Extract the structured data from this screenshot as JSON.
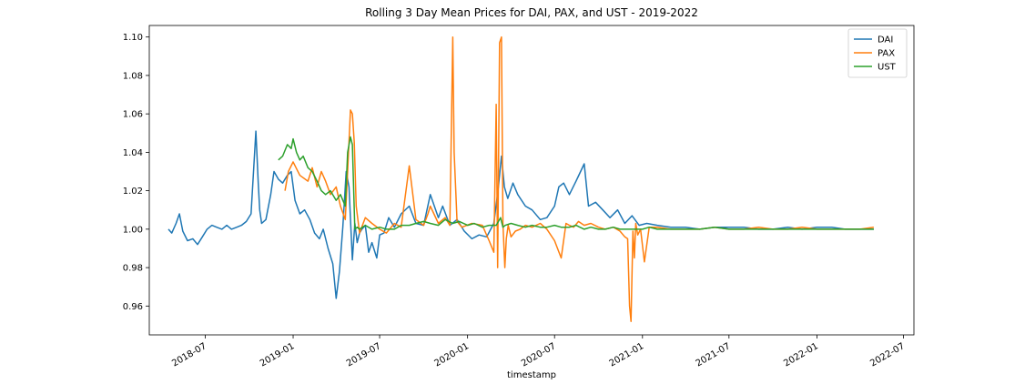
{
  "chart_data": {
    "type": "line",
    "title": "Rolling 3 Day Mean Prices for DAI, PAX, and UST - 2019-2022",
    "xlabel": "timestamp",
    "ylabel": "",
    "xlim": [
      "2018-03-06",
      "2022-07-23"
    ],
    "ylim": [
      0.945,
      1.106
    ],
    "grid": false,
    "legend_position": "top-right",
    "x_ticks": [
      "2018-07",
      "2019-01",
      "2019-07",
      "2020-01",
      "2020-07",
      "2021-01",
      "2021-07",
      "2022-01",
      "2022-07"
    ],
    "y_ticks": [
      "0.96",
      "0.98",
      "1.00",
      "1.02",
      "1.04",
      "1.06",
      "1.08",
      "1.10"
    ],
    "series": [
      {
        "name": "DAI",
        "color": "#1f77b4",
        "x": [
          "2018-04-15",
          "2018-04-22",
          "2018-05-01",
          "2018-05-08",
          "2018-05-15",
          "2018-05-25",
          "2018-06-05",
          "2018-06-15",
          "2018-06-25",
          "2018-07-05",
          "2018-07-15",
          "2018-07-25",
          "2018-08-05",
          "2018-08-15",
          "2018-08-25",
          "2018-09-05",
          "2018-09-15",
          "2018-09-25",
          "2018-10-05",
          "2018-10-15",
          "2018-10-20",
          "2018-10-23",
          "2018-10-27",
          "2018-11-05",
          "2018-11-15",
          "2018-11-22",
          "2018-12-01",
          "2018-12-10",
          "2018-12-20",
          "2018-12-28",
          "2019-01-05",
          "2019-01-15",
          "2019-01-25",
          "2019-02-05",
          "2019-02-15",
          "2019-02-25",
          "2019-03-05",
          "2019-03-15",
          "2019-03-25",
          "2019-04-01",
          "2019-04-08",
          "2019-04-15",
          "2019-04-22",
          "2019-04-28",
          "2019-05-05",
          "2019-05-10",
          "2019-05-15",
          "2019-05-20",
          "2019-05-25",
          "2019-06-01",
          "2019-06-08",
          "2019-06-15",
          "2019-06-25",
          "2019-07-01",
          "2019-07-10",
          "2019-07-20",
          "2019-08-01",
          "2019-08-15",
          "2019-09-01",
          "2019-09-15",
          "2019-10-01",
          "2019-10-15",
          "2019-11-01",
          "2019-11-10",
          "2019-11-25",
          "2019-12-10",
          "2019-12-25",
          "2020-01-10",
          "2020-01-25",
          "2020-02-10",
          "2020-02-25",
          "2020-03-05",
          "2020-03-12",
          "2020-03-18",
          "2020-03-25",
          "2020-04-05",
          "2020-04-15",
          "2020-05-01",
          "2020-05-15",
          "2020-06-01",
          "2020-06-15",
          "2020-07-01",
          "2020-07-10",
          "2020-07-20",
          "2020-08-01",
          "2020-08-15",
          "2020-09-01",
          "2020-09-10",
          "2020-09-25",
          "2020-10-10",
          "2020-10-25",
          "2020-11-10",
          "2020-11-25",
          "2020-12-10",
          "2020-12-25",
          "2021-01-10",
          "2021-02-01",
          "2021-03-01",
          "2021-04-01",
          "2021-05-01",
          "2021-06-01",
          "2021-07-01",
          "2021-08-01",
          "2021-09-01",
          "2021-10-01",
          "2021-11-01",
          "2021-12-01",
          "2022-01-01",
          "2022-02-01",
          "2022-03-01",
          "2022-04-01",
          "2022-04-30"
        ],
        "values": [
          1.0,
          0.998,
          1.003,
          1.008,
          0.999,
          0.994,
          0.995,
          0.992,
          0.996,
          1.0,
          1.002,
          1.001,
          1.0,
          1.002,
          1.0,
          1.001,
          1.002,
          1.004,
          1.008,
          1.051,
          1.024,
          1.01,
          1.003,
          1.005,
          1.018,
          1.03,
          1.026,
          1.024,
          1.028,
          1.03,
          1.015,
          1.008,
          1.01,
          1.005,
          0.998,
          0.995,
          1.0,
          0.99,
          0.982,
          0.964,
          0.978,
          1.001,
          1.03,
          1.022,
          0.984,
          1.003,
          0.993,
          0.998,
          1.0,
          1.002,
          0.988,
          0.993,
          0.985,
          0.997,
          0.998,
          1.006,
          1.001,
          1.008,
          1.012,
          1.003,
          1.002,
          1.018,
          1.006,
          1.012,
          1.002,
          1.005,
          0.999,
          0.995,
          0.997,
          0.996,
          1.003,
          1.021,
          1.038,
          1.022,
          1.016,
          1.024,
          1.018,
          1.012,
          1.01,
          1.005,
          1.006,
          1.012,
          1.022,
          1.024,
          1.018,
          1.025,
          1.034,
          1.012,
          1.014,
          1.01,
          1.006,
          1.01,
          1.003,
          1.007,
          1.002,
          1.003,
          1.002,
          1.001,
          1.001,
          1.0,
          1.001,
          1.001,
          1.001,
          1.0,
          1.0,
          1.001,
          1.0,
          1.001,
          1.001,
          1.0,
          1.0,
          1.0
        ]
      },
      {
        "name": "PAX",
        "color": "#ff7f0e",
        "x": [
          "2018-12-15",
          "2018-12-22",
          "2019-01-01",
          "2019-01-15",
          "2019-02-01",
          "2019-02-10",
          "2019-02-20",
          "2019-03-01",
          "2019-03-10",
          "2019-03-20",
          "2019-04-01",
          "2019-04-10",
          "2019-04-20",
          "2019-04-25",
          "2019-05-01",
          "2019-05-05",
          "2019-05-09",
          "2019-05-13",
          "2019-05-20",
          "2019-06-01",
          "2019-06-15",
          "2019-07-01",
          "2019-07-15",
          "2019-08-01",
          "2019-08-15",
          "2019-09-01",
          "2019-09-15",
          "2019-10-01",
          "2019-10-10",
          "2019-10-15",
          "2019-11-01",
          "2019-11-15",
          "2019-11-25",
          "2019-12-01",
          "2019-12-04",
          "2019-12-10",
          "2019-12-20",
          "2020-01-10",
          "2020-02-01",
          "2020-02-15",
          "2020-02-25",
          "2020-03-01",
          "2020-03-04",
          "2020-03-08",
          "2020-03-12",
          "2020-03-15",
          "2020-03-19",
          "2020-03-22",
          "2020-03-26",
          "2020-04-01",
          "2020-04-10",
          "2020-04-20",
          "2020-05-01",
          "2020-05-15",
          "2020-06-01",
          "2020-06-15",
          "2020-07-01",
          "2020-07-15",
          "2020-07-25",
          "2020-08-01",
          "2020-08-10",
          "2020-08-20",
          "2020-09-01",
          "2020-09-15",
          "2020-10-01",
          "2020-10-15",
          "2020-11-01",
          "2020-11-15",
          "2020-11-25",
          "2020-12-01",
          "2020-12-05",
          "2020-12-08",
          "2020-12-12",
          "2020-12-15",
          "2020-12-18",
          "2020-12-22",
          "2020-12-28",
          "2021-01-05",
          "2021-01-15",
          "2021-02-01",
          "2021-03-01",
          "2021-04-01",
          "2021-05-01",
          "2021-06-01",
          "2021-07-01",
          "2021-08-01",
          "2021-09-01",
          "2021-10-01",
          "2021-11-01",
          "2021-12-01",
          "2022-01-01",
          "2022-02-01",
          "2022-03-01",
          "2022-04-01",
          "2022-04-30"
        ],
        "values": [
          1.02,
          1.03,
          1.035,
          1.028,
          1.025,
          1.032,
          1.022,
          1.03,
          1.025,
          1.018,
          1.022,
          1.012,
          1.005,
          1.03,
          1.062,
          1.06,
          1.045,
          1.012,
          0.998,
          1.006,
          1.003,
          1.0,
          0.998,
          1.003,
          1.001,
          1.033,
          1.005,
          1.002,
          1.008,
          1.012,
          1.003,
          1.006,
          1.002,
          1.1,
          1.04,
          1.004,
          1.001,
          1.003,
          1.002,
          0.994,
          0.988,
          1.065,
          0.98,
          1.097,
          1.1,
          1.003,
          0.98,
          0.995,
          1.002,
          0.996,
          0.999,
          1.0,
          1.002,
          1.001,
          1.003,
          1.0,
          0.994,
          0.985,
          1.003,
          1.002,
          1.001,
          1.004,
          1.002,
          1.003,
          1.001,
          1.0,
          1.001,
          0.999,
          0.996,
          0.995,
          0.96,
          0.952,
          0.999,
          0.985,
          1.003,
          0.997,
          1.0,
          0.983,
          1.001,
          1.001,
          1.0,
          1.0,
          1.0,
          1.001,
          1.0,
          1.0,
          1.001,
          1.0,
          1.0,
          1.001,
          1.0,
          1.0,
          1.0,
          1.0,
          1.001
        ]
      },
      {
        "name": "UST",
        "color": "#2ca02c",
        "x": [
          "2018-12-01",
          "2018-12-10",
          "2018-12-20",
          "2018-12-28",
          "2019-01-01",
          "2019-01-08",
          "2019-01-15",
          "2019-01-22",
          "2019-02-01",
          "2019-02-10",
          "2019-02-20",
          "2019-03-01",
          "2019-03-10",
          "2019-03-20",
          "2019-04-01",
          "2019-04-10",
          "2019-04-20",
          "2019-04-25",
          "2019-05-01",
          "2019-05-05",
          "2019-05-10",
          "2019-05-15",
          "2019-05-20",
          "2019-06-01",
          "2019-06-15",
          "2019-07-01",
          "2019-07-15",
          "2019-08-01",
          "2019-08-15",
          "2019-09-01",
          "2019-09-15",
          "2019-10-01",
          "2019-10-15",
          "2019-11-01",
          "2019-11-15",
          "2019-12-01",
          "2019-12-15",
          "2020-01-01",
          "2020-01-15",
          "2020-02-01",
          "2020-02-15",
          "2020-03-01",
          "2020-03-10",
          "2020-03-15",
          "2020-03-20",
          "2020-04-01",
          "2020-04-15",
          "2020-05-01",
          "2020-05-15",
          "2020-06-01",
          "2020-06-15",
          "2020-07-01",
          "2020-07-15",
          "2020-08-01",
          "2020-08-15",
          "2020-09-01",
          "2020-09-15",
          "2020-10-01",
          "2020-10-15",
          "2020-11-01",
          "2020-11-15",
          "2020-12-01",
          "2020-12-15",
          "2021-01-01",
          "2021-01-15",
          "2021-02-01",
          "2021-03-01",
          "2021-04-01",
          "2021-05-01",
          "2021-06-01",
          "2021-07-01",
          "2021-08-01",
          "2021-09-01",
          "2021-10-01",
          "2021-11-01",
          "2021-12-01",
          "2022-01-01",
          "2022-02-01",
          "2022-03-01",
          "2022-04-01",
          "2022-04-30"
        ],
        "values": [
          1.036,
          1.038,
          1.044,
          1.042,
          1.047,
          1.04,
          1.036,
          1.038,
          1.032,
          1.03,
          1.025,
          1.02,
          1.018,
          1.02,
          1.015,
          1.018,
          1.012,
          1.04,
          1.048,
          1.044,
          1.0,
          1.001,
          1.0,
          1.002,
          1.0,
          1.001,
          1.0,
          1.0,
          1.002,
          1.002,
          1.003,
          1.004,
          1.003,
          1.002,
          1.005,
          1.003,
          1.004,
          1.002,
          1.003,
          1.001,
          1.002,
          1.002,
          1.006,
          1.001,
          1.002,
          1.003,
          1.002,
          1.001,
          1.002,
          1.001,
          1.001,
          1.002,
          1.001,
          1.001,
          1.002,
          1.0,
          1.001,
          1.0,
          1.0,
          1.001,
          1.0,
          1.0,
          1.0,
          1.0,
          1.001,
          1.0,
          1.0,
          1.0,
          1.0,
          1.001,
          1.0,
          1.0,
          1.0,
          1.0,
          1.0,
          1.0,
          1.0,
          1.0,
          1.0,
          1.0,
          1.0
        ]
      }
    ]
  }
}
